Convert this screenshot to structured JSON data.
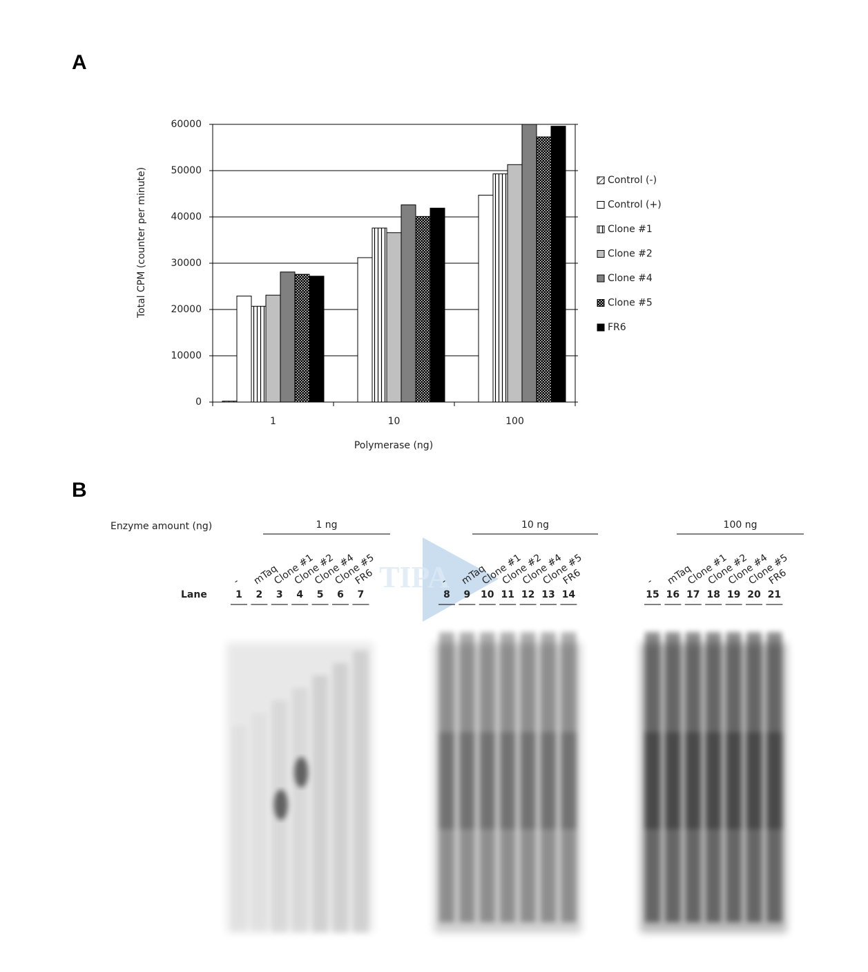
{
  "chart_data": {
    "type": "bar",
    "panel_label": "A",
    "ylabel": "Total CPM (counter per minute)",
    "xlabel": "Polymerase (ng)",
    "categories": [
      "1",
      "10",
      "100"
    ],
    "series": [
      {
        "name": "Control (-)",
        "color": "#ffffff",
        "pattern": "diagonal",
        "values": [
          200,
          0,
          0
        ]
      },
      {
        "name": "Control (+)",
        "color": "#ffffff",
        "values": [
          22900,
          31200,
          44700
        ]
      },
      {
        "name": "Clone #1",
        "color": "#ffffff",
        "pattern": "vstripes",
        "values": [
          20700,
          37600,
          49300
        ]
      },
      {
        "name": "Clone #2",
        "color": "#c0c0c0",
        "values": [
          23100,
          36600,
          51300
        ]
      },
      {
        "name": "Clone #4",
        "color": "#808080",
        "values": [
          28100,
          42600,
          60000
        ]
      },
      {
        "name": "Clone #5",
        "color": "#000000",
        "pattern": "checker",
        "values": [
          27600,
          40100,
          57300
        ]
      },
      {
        "name": "FR6",
        "color": "#000000",
        "values": [
          27200,
          41900,
          59600
        ]
      }
    ],
    "ylim": [
      0,
      60000
    ],
    "yticks": [
      0,
      10000,
      20000,
      30000,
      40000,
      50000,
      60000
    ],
    "grid": true,
    "legend": "right"
  },
  "gel": {
    "panel_label": "B",
    "title": "Enzyme amount (ng)",
    "lane_header": "Lane",
    "watermark": "TIPA",
    "groups": [
      {
        "label": "1 ng",
        "samples": [
          "-",
          "mTaq",
          "Clone #1",
          "Clone #2",
          "Clone #4",
          "Clone #5",
          "FR6"
        ],
        "lanes": [
          "1",
          "2",
          "3",
          "4",
          "5",
          "6",
          "7"
        ]
      },
      {
        "label": "10 ng",
        "samples": [
          "-",
          "mTaq",
          "Clone #1",
          "Clone #2",
          "Clone #4",
          "Clone #5",
          "FR6"
        ],
        "lanes": [
          "8",
          "9",
          "10",
          "11",
          "12",
          "13",
          "14"
        ]
      },
      {
        "label": "100 ng",
        "samples": [
          "-",
          "mTaq",
          "Clone #1",
          "Clone #2",
          "Clone #4",
          "Clone #5",
          "FR6"
        ],
        "lanes": [
          "15",
          "16",
          "17",
          "18",
          "19",
          "20",
          "21"
        ]
      }
    ]
  }
}
